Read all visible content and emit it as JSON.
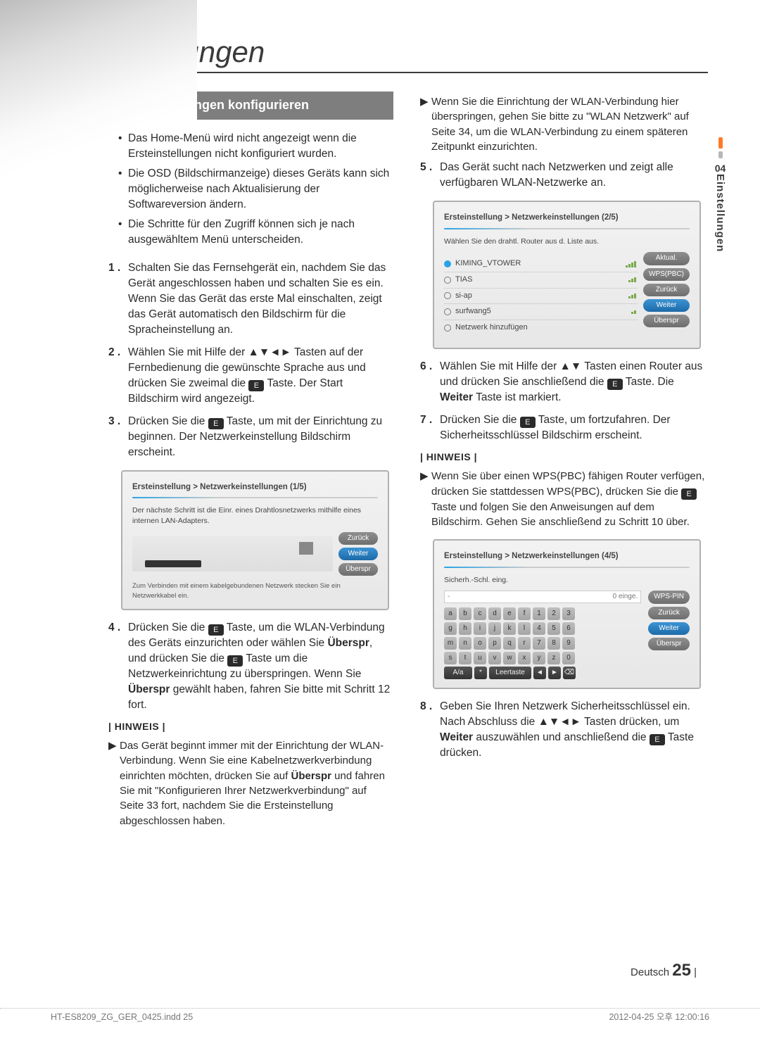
{
  "title": "Einstellungen",
  "sidetab": {
    "num": "04",
    "label": "Einstellungen"
  },
  "section_header": "Ersteinstellungen konfigurieren",
  "intro_bullets": [
    "Das Home-Menü wird nicht angezeigt wenn die Ersteinstellungen nicht konfiguriert wurden.",
    "Die OSD (Bildschirmanzeige) dieses Geräts kann sich möglicherweise nach Aktualisierung der Softwareversion ändern.",
    "Die Schritte für den Zugriff können sich je nach ausgewähltem Menü unterscheiden."
  ],
  "left_steps": {
    "s1": {
      "num": "1 .",
      "text": "Schalten Sie das Fernsehgerät ein, nachdem Sie das Gerät angeschlossen haben und schalten Sie es ein. Wenn Sie das Gerät das erste Mal einschalten, zeigt das Gerät automatisch den Bildschirm für die Spracheinstellung an."
    },
    "s2": {
      "num": "2 .",
      "pre": "Wählen Sie mit Hilfe der ▲▼◄► Tasten auf der Fernbedienung die gewünschte Sprache aus und drücken Sie zweimal die ",
      "post": " Taste. Der Start Bildschirm wird angezeigt."
    },
    "s3": {
      "num": "3 .",
      "pre": "Drücken Sie die ",
      "post": " Taste, um mit der Einrichtung zu beginnen. Der Netzwerkeinstellung Bildschirm erscheint."
    },
    "s4": {
      "num": "4 .",
      "pre": "Drücken Sie die ",
      "mid1": " Taste, um die WLAN-Verbindung des Geräts einzurichten oder wählen Sie ",
      "skip1": "Überspr",
      "mid2": ", und drücken Sie die ",
      "mid3": " Taste um die Netzwerkeinrichtung zu überspringen. Wenn Sie ",
      "skip2": "Überspr",
      "post": " gewählt haben, fahren Sie bitte mit Schritt 12 fort."
    }
  },
  "left_note_label": "| HINWEIS |",
  "left_note": "Das Gerät beginnt immer mit der Einrichtung der WLAN-Verbindung. Wenn Sie eine Kabelnetzwerkverbindung einrichten möchten, drücken Sie auf Überspr und fahren Sie mit \"Konfigurieren Ihrer Netzwerkverbindung\" auf Seite 33 fort, nachdem Sie die Ersteinstellung abgeschlossen haben.",
  "left_note_bold": "Überspr",
  "right_top_note": "Wenn Sie die Einrichtung der WLAN-Verbindung hier überspringen, gehen Sie bitte zu \"WLAN Netzwerk\" auf Seite 34, um die WLAN-Verbindung zu einem späteren Zeitpunkt einzurichten.",
  "right_steps": {
    "s5": {
      "num": "5 .",
      "text": "Das Gerät sucht nach Netzwerken und zeigt alle verfügbaren WLAN-Netzwerke an."
    },
    "s6": {
      "num": "6 .",
      "pre": "Wählen Sie mit Hilfe der ▲▼ Tasten einen Router aus und drücken Sie anschließend die ",
      "mid": " Taste. Die ",
      "bold": "Weiter",
      "post": " Taste ist markiert."
    },
    "s7": {
      "num": "7 .",
      "pre": "Drücken Sie die ",
      "post": " Taste, um fortzufahren. Der Sicherheitsschlüssel Bildschirm erscheint."
    },
    "s8": {
      "num": "8 .",
      "pre": "Geben Sie Ihren Netzwerk Sicherheitsschlüssel ein. Nach Abschluss die ▲▼◄► Tasten drücken, um ",
      "bold": "Weiter",
      "mid": " auszuwählen und anschließend die ",
      "post": " Taste drücken."
    }
  },
  "right_note_label": "| HINWEIS |",
  "right_note_pre": "Wenn Sie über einen WPS(PBC) fähigen Router verfügen, drücken Sie stattdessen WPS(PBC), drücken Sie die ",
  "right_note_post": " Taste und folgen Sie den Anweisungen auf dem Bildschirm. Gehen Sie anschließend zu Schritt 10 über.",
  "shot1": {
    "crumb": "Ersteinstellung > Netzwerkeinstellungen (1/5)",
    "desc": "Der nächste Schritt ist die Einr. eines Drahtlosnetzwerks mithilfe eines internen LAN-Adapters.",
    "btns": [
      "Zurück",
      "Weiter",
      "Überspr"
    ],
    "foot": "Zum Verbinden mit einem kabelgebundenen Netzwerk stecken Sie ein Netzwerkkabel ein."
  },
  "shot2": {
    "crumb": "Ersteinstellung > Netzwerkeinstellungen (2/5)",
    "desc": "Wählen Sie den drahtl. Router aus d. Liste aus.",
    "rows": [
      {
        "label": "KIMING_VTOWER",
        "selected": true,
        "lock": false,
        "sig": 4
      },
      {
        "label": "TIAS",
        "selected": false,
        "lock": true,
        "sig": 3
      },
      {
        "label": "si-ap",
        "selected": false,
        "lock": true,
        "sig": 3
      },
      {
        "label": "surfwang5",
        "selected": false,
        "lock": true,
        "sig": 2
      },
      {
        "label": "Netzwerk hinzufügen",
        "selected": false,
        "lock": false,
        "sig": 0
      }
    ],
    "btns": [
      "Aktual.",
      "WPS(PBC)",
      "Zurück",
      "Weiter",
      "Überspr"
    ]
  },
  "shot3": {
    "crumb": "Ersteinstellung > Netzwerkeinstellungen (4/5)",
    "label": "Sicherh.-Schl. eing.",
    "counter": "0 einge.",
    "rows": [
      [
        "a",
        "b",
        "c",
        "d",
        "e",
        "f",
        "1",
        "2",
        "3"
      ],
      [
        "g",
        "h",
        "i",
        "j",
        "k",
        "l",
        "4",
        "5",
        "6"
      ],
      [
        "m",
        "n",
        "o",
        "p",
        "q",
        "r",
        "7",
        "8",
        "9"
      ],
      [
        "s",
        "t",
        "u",
        "v",
        "w",
        "x",
        "y",
        "z",
        "0"
      ]
    ],
    "bottom": [
      "A/a",
      "*",
      "Leertaste",
      "◄",
      "►",
      "⌫"
    ],
    "btns": [
      "WPS-PIN",
      "Zurück",
      "Weiter",
      "Überspr"
    ]
  },
  "enter_glyph": "E",
  "footer": {
    "lang": "Deutsch",
    "page": "25"
  },
  "imprint": {
    "left": "HT-ES8209_ZG_GER_0425.indd   25",
    "right": "2012-04-25   오후 12:00:16"
  }
}
